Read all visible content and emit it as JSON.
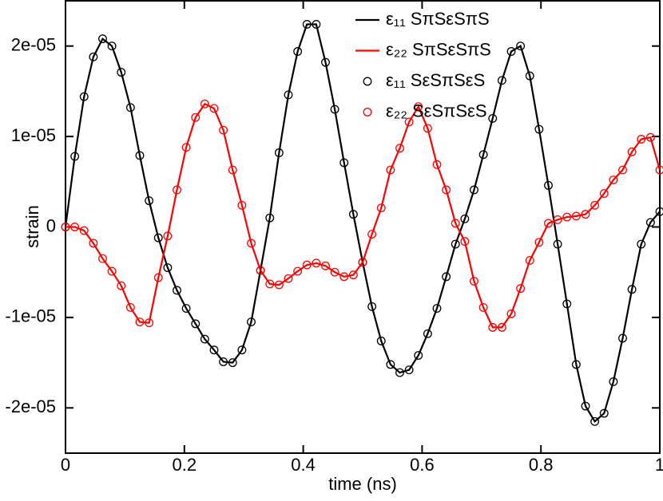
{
  "chart_data": {
    "type": "line",
    "x_label": "time (ns)",
    "y_label": "strain",
    "xlim": [
      0,
      1
    ],
    "ylim": [
      -2.5e-05,
      2.5e-05
    ],
    "xticks": [
      0,
      0.2,
      0.4,
      0.6,
      0.8,
      1
    ],
    "yticks": [
      {
        "value": -2e-05,
        "label": "-2e-05"
      },
      {
        "value": -1e-05,
        "label": "-1e-05"
      },
      0,
      {
        "value": 1e-05,
        "label": "1e-05"
      },
      {
        "value": 2e-05,
        "label": "2e-05"
      }
    ],
    "legend": "top-right",
    "x": [
      0,
      0.015625,
      0.03125,
      0.046875,
      0.0625,
      0.078125,
      0.09375,
      0.109375,
      0.125,
      0.140625,
      0.15625,
      0.171875,
      0.1875,
      0.203125,
      0.21875,
      0.234375,
      0.25,
      0.265625,
      0.28125,
      0.296875,
      0.3125,
      0.328125,
      0.34375,
      0.359375,
      0.375,
      0.390625,
      0.40625,
      0.421875,
      0.4375,
      0.453125,
      0.46875,
      0.484375,
      0.5,
      0.515625,
      0.53125,
      0.546875,
      0.5625,
      0.578125,
      0.59375,
      0.609375,
      0.625,
      0.640625,
      0.65625,
      0.671875,
      0.6875,
      0.703125,
      0.71875,
      0.734375,
      0.75,
      0.765625,
      0.78125,
      0.796875,
      0.8125,
      0.828125,
      0.84375,
      0.859375,
      0.875,
      0.890625,
      0.90625,
      0.921875,
      0.9375,
      0.953125,
      0.96875,
      0.984375,
      1
    ],
    "series": [
      {
        "name": "ε₁₁ SπSεSπS",
        "color": "#000000",
        "style": "line",
        "values": [
          0,
          7.8e-06,
          1.44e-05,
          1.88e-05,
          2.08e-05,
          2e-05,
          1.71e-05,
          1.32e-05,
          7.9e-06,
          2.9e-06,
          -1.2e-06,
          -4.5e-06,
          -7e-06,
          -9e-06,
          -1.07e-05,
          -1.24e-05,
          -1.36e-05,
          -1.49e-05,
          -1.5e-05,
          -1.36e-05,
          -1.05e-05,
          -4.8e-06,
          1e-06,
          8.2e-06,
          1.46e-05,
          1.94e-05,
          2.24e-05,
          2.24e-05,
          1.82e-05,
          1.3e-05,
          7.1e-06,
          1.4e-06,
          -3.9e-06,
          -8.8e-06,
          -1.26e-05,
          -1.52e-05,
          -1.61e-05,
          -1.58e-05,
          -1.42e-05,
          -1.18e-05,
          -9e-06,
          -5.5e-06,
          -1.9e-06,
          9e-07,
          4.1e-06,
          8e-06,
          1.2e-05,
          1.62e-05,
          1.94e-05,
          2e-05,
          1.67e-05,
          1.08e-05,
          4.6e-06,
          -1.9e-06,
          -8.5e-06,
          -1.52e-05,
          -1.98e-05,
          -2.15e-05,
          -2.06e-05,
          -1.71e-05,
          -1.23e-05,
          -6.9e-06,
          -1.9e-06,
          5e-07,
          1.7e-06
        ]
      },
      {
        "name": "ε₂₂ SπSεSπS",
        "color": "#ff0000",
        "style": "line",
        "values": [
          0,
          0,
          -4e-07,
          -1.8e-06,
          -3.5e-06,
          -4.9e-06,
          -6.5e-06,
          -8.9e-06,
          -1.05e-05,
          -1.06e-05,
          -5.6e-06,
          -1e-06,
          4.1e-06,
          8.8e-06,
          1.21e-05,
          1.36e-05,
          1.31e-05,
          1.07e-05,
          6.3e-06,
          2.4e-06,
          -1.8e-06,
          -4.8e-06,
          -6.3e-06,
          -6.4e-06,
          -5.7e-06,
          -4.9e-06,
          -4.2e-06,
          -4e-06,
          -4.3e-06,
          -5e-06,
          -5.5e-06,
          -5.3e-06,
          -3.9e-06,
          -8e-07,
          2.1e-06,
          6.3e-06,
          8.7e-06,
          1.16e-05,
          1.33e-05,
          1.09e-05,
          6.9e-06,
          4.1e-06,
          4e-07,
          -1.6e-06,
          -6e-06,
          -8.9e-06,
          -1.11e-05,
          -1.11e-05,
          -9.6e-06,
          -6.8e-06,
          -3.7e-06,
          -1.7e-06,
          4e-07,
          8e-07,
          1.1e-06,
          1.2e-06,
          1.4e-06,
          2.4e-06,
          3.7e-06,
          5.2e-06,
          6.3e-06,
          8.3e-06,
          9.7e-06,
          9.9e-06,
          6.3e-06
        ]
      },
      {
        "name": "ε₁₁ SεSπSεS",
        "color": "#000000",
        "style": "marker",
        "values": [
          0,
          7.8e-06,
          1.44e-05,
          1.88e-05,
          2.08e-05,
          2e-05,
          1.71e-05,
          1.32e-05,
          7.9e-06,
          2.9e-06,
          -1.2e-06,
          -4.5e-06,
          -7e-06,
          -9e-06,
          -1.07e-05,
          -1.24e-05,
          -1.36e-05,
          -1.49e-05,
          -1.5e-05,
          -1.36e-05,
          -1.05e-05,
          -4.8e-06,
          1e-06,
          8.2e-06,
          1.46e-05,
          1.94e-05,
          2.24e-05,
          2.24e-05,
          1.82e-05,
          1.3e-05,
          7.1e-06,
          1.4e-06,
          -3.9e-06,
          -8.8e-06,
          -1.26e-05,
          -1.52e-05,
          -1.61e-05,
          -1.58e-05,
          -1.42e-05,
          -1.18e-05,
          -9e-06,
          -5.5e-06,
          -1.9e-06,
          9e-07,
          4.1e-06,
          8e-06,
          1.2e-05,
          1.62e-05,
          1.94e-05,
          2e-05,
          1.67e-05,
          1.08e-05,
          4.6e-06,
          -1.9e-06,
          -8.5e-06,
          -1.52e-05,
          -1.98e-05,
          -2.15e-05,
          -2.06e-05,
          -1.71e-05,
          -1.23e-05,
          -6.9e-06,
          -1.9e-06,
          5e-07,
          1.7e-06
        ]
      },
      {
        "name": "ε₂₂ SεSπSεS",
        "color": "#ff0000",
        "style": "marker",
        "values": [
          0,
          0,
          -4e-07,
          -1.8e-06,
          -3.5e-06,
          -4.9e-06,
          -6.5e-06,
          -8.9e-06,
          -1.05e-05,
          -1.06e-05,
          -5.6e-06,
          -1e-06,
          4.1e-06,
          8.8e-06,
          1.21e-05,
          1.36e-05,
          1.31e-05,
          1.07e-05,
          6.3e-06,
          2.4e-06,
          -1.8e-06,
          -4.8e-06,
          -6.3e-06,
          -6.4e-06,
          -5.7e-06,
          -4.9e-06,
          -4.2e-06,
          -4e-06,
          -4.3e-06,
          -5e-06,
          -5.5e-06,
          -5.3e-06,
          -3.9e-06,
          -8e-07,
          2.1e-06,
          6.3e-06,
          8.7e-06,
          1.16e-05,
          1.33e-05,
          1.09e-05,
          6.9e-06,
          4.1e-06,
          4e-07,
          -1.6e-06,
          -6e-06,
          -8.9e-06,
          -1.11e-05,
          -1.11e-05,
          -9.6e-06,
          -6.8e-06,
          -3.7e-06,
          -1.7e-06,
          4e-07,
          8e-07,
          1.1e-06,
          1.2e-06,
          1.4e-06,
          2.4e-06,
          3.7e-06,
          5.2e-06,
          6.3e-06,
          8.3e-06,
          9.7e-06,
          9.9e-06,
          6.3e-06
        ]
      }
    ]
  }
}
